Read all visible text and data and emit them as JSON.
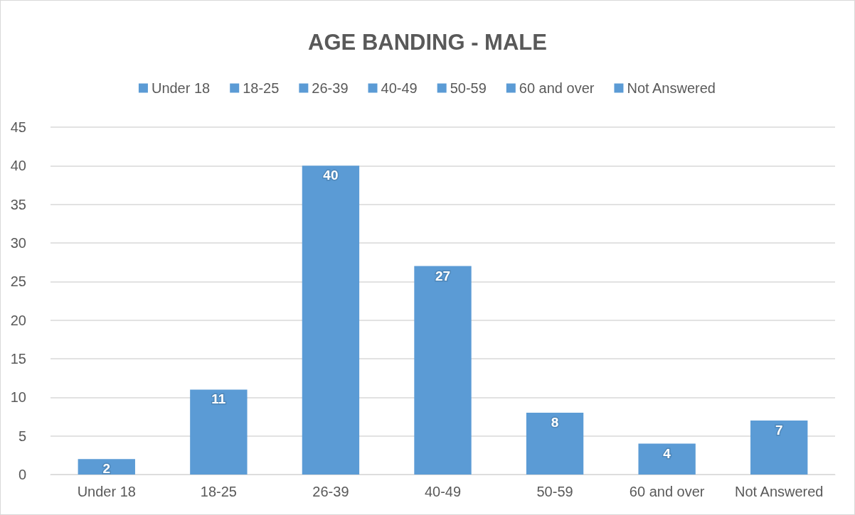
{
  "chart_data": {
    "type": "bar",
    "title": "AGE BANDING - MALE",
    "categories": [
      "Under 18",
      "18-25",
      "26-39",
      "40-49",
      "50-59",
      "60 and over",
      "Not Answered"
    ],
    "stacked": true,
    "series": [
      {
        "name": "Under 18",
        "color": "#5b9bd5",
        "values": [
          2,
          null,
          null,
          null,
          null,
          null,
          null
        ]
      },
      {
        "name": "18-25",
        "color": "#5b9bd5",
        "values": [
          null,
          11,
          null,
          null,
          null,
          null,
          null
        ]
      },
      {
        "name": "26-39",
        "color": "#5b9bd5",
        "values": [
          null,
          null,
          40,
          null,
          null,
          null,
          null
        ]
      },
      {
        "name": "40-49",
        "color": "#5b9bd5",
        "values": [
          null,
          null,
          null,
          27,
          null,
          null,
          null
        ]
      },
      {
        "name": "50-59",
        "color": "#5b9bd5",
        "values": [
          null,
          null,
          null,
          null,
          8,
          null,
          null
        ]
      },
      {
        "name": "60 and over",
        "color": "#5b9bd5",
        "values": [
          null,
          null,
          null,
          null,
          null,
          4,
          null
        ]
      },
      {
        "name": "Not Answered",
        "color": "#5b9bd5",
        "values": [
          null,
          null,
          null,
          null,
          null,
          null,
          7
        ]
      }
    ],
    "ylim": [
      0,
      45
    ],
    "yticks": [
      0,
      5,
      10,
      15,
      20,
      25,
      30,
      35,
      40,
      45
    ],
    "grid": true,
    "legend": "top",
    "data_labels": true
  }
}
